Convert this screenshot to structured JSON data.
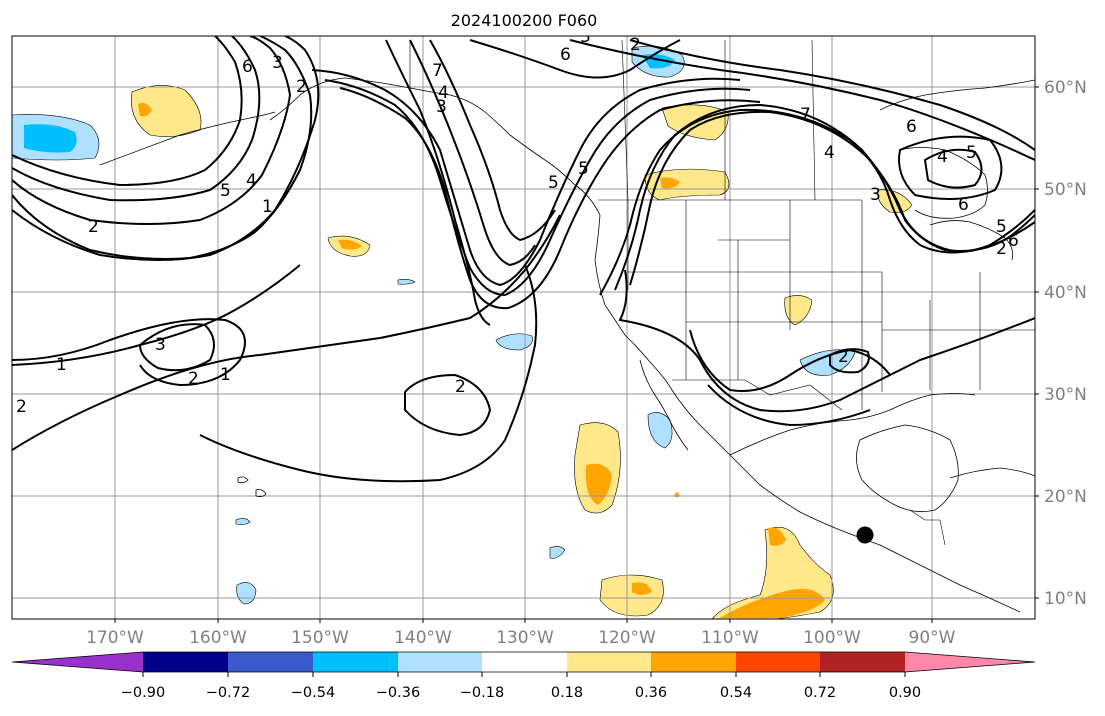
{
  "title": "2024100200 F060",
  "map": {
    "longitude_labels": [
      "170°W",
      "160°W",
      "150°W",
      "140°W",
      "130°W",
      "120°W",
      "110°W",
      "100°W",
      "90°W"
    ],
    "latitude_labels": [
      "10°N",
      "20°N",
      "30°N",
      "40°N",
      "50°N",
      "60°N"
    ],
    "contour_labels": [
      "6",
      "3",
      "2",
      "5",
      "4",
      "1",
      "2",
      "3",
      "2",
      "1",
      "1",
      "2",
      "7",
      "4",
      "3",
      "5",
      "6",
      "3",
      "5",
      "2",
      "6",
      "4",
      "5",
      "6",
      "4",
      "3",
      "5",
      "6",
      "7",
      "2",
      "2",
      "2"
    ],
    "marker": "storm-position-dot"
  },
  "colorbar": {
    "tick_labels": [
      "−0.90",
      "−0.72",
      "−0.54",
      "−0.36",
      "−0.18",
      "0.18",
      "0.36",
      "0.54",
      "0.72",
      "0.90"
    ],
    "colors": [
      "#9932cc",
      "#00008b",
      "#3a5bcc",
      "#00bfff",
      "#b0e0ff",
      "#ffffff",
      "#ffe88a",
      "#ffa500",
      "#ff4500",
      "#b22222",
      "#ff88aa"
    ]
  }
}
